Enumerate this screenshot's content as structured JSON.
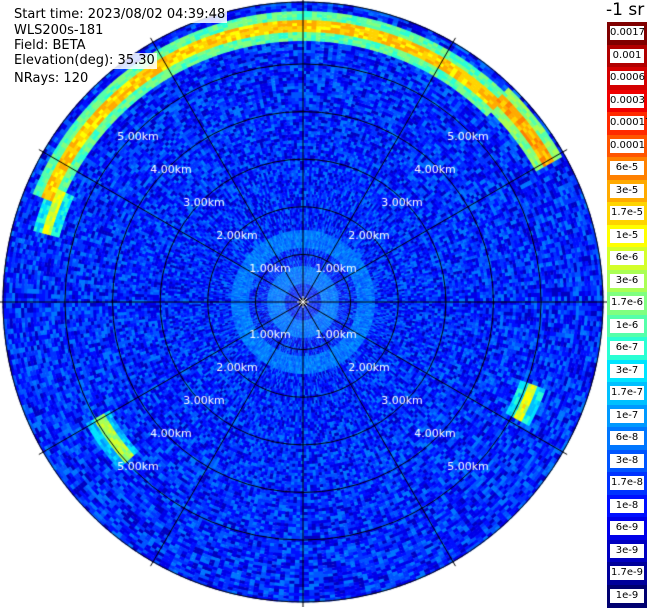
{
  "header": {
    "start_time": "Start time: 2023/08/02 04:39:48",
    "instrument": "WLS200s-181",
    "field": "Field: BETA",
    "elevation": "Elevation(deg): 35.30",
    "nrays": "NRays: 120"
  },
  "colorbar": {
    "units": "-1 sr",
    "labels": [
      "0.0017",
      "0.001",
      "0.0006",
      "0.0003",
      "0.00017",
      "0.0001",
      "6e-5",
      "3e-5",
      "1.7e-5",
      "1e-5",
      "6e-6",
      "3e-6",
      "1.7e-6",
      "1e-6",
      "6e-7",
      "3e-7",
      "1.7e-7",
      "1e-7",
      "6e-8",
      "3e-8",
      "1.7e-8",
      "1e-8",
      "6e-9",
      "3e-9",
      "1.7e-9",
      "1e-9"
    ],
    "colors": [
      "#7f0000",
      "#b00000",
      "#d40000",
      "#f00000",
      "#ff2a00",
      "#ff5500",
      "#ff8000",
      "#ffaa00",
      "#ffd400",
      "#ffff00",
      "#d4ff2a",
      "#aaff55",
      "#80ff80",
      "#55ffaa",
      "#2affd4",
      "#00e4ff",
      "#00c0ff",
      "#0099ff",
      "#0077ff",
      "#0055ff",
      "#0033ff",
      "#0010ff",
      "#0000e8",
      "#0000c0",
      "#00009a",
      "#000070"
    ]
  },
  "chart_data": {
    "type": "heatmap",
    "projection": "polar (PPI)",
    "title": "",
    "field": "BETA",
    "elevation_deg": 35.3,
    "nrays": 120,
    "range_rings_km": [
      1.0,
      2.0,
      3.0,
      4.0,
      5.0
    ],
    "ring_labels": [
      "1.00km",
      "2.00km",
      "3.00km",
      "4.00km",
      "5.00km"
    ],
    "max_range_km": 6.3,
    "spoke_angles_deg": [
      0,
      30,
      60,
      90,
      120,
      150,
      180,
      210,
      240,
      270,
      300,
      330
    ],
    "colorscale": "log",
    "color_range": [
      1e-09,
      0.0017
    ],
    "background_beta": 1.7e-08,
    "features": [
      {
        "description": "arc",
        "azimuth_start_deg": 292,
        "azimuth_end_deg": 44,
        "range_km": 5.75,
        "beta": 1.7e-05
      },
      {
        "description": "arc",
        "azimuth_start_deg": 44,
        "azimuth_end_deg": 60,
        "range_km": 5.9,
        "beta": 3e-05
      },
      {
        "description": "arc",
        "azimuth_start_deg": 285,
        "azimuth_end_deg": 294,
        "range_km": 5.55,
        "beta": 6e-06
      },
      {
        "description": "arc",
        "azimuth_start_deg": 228,
        "azimuth_end_deg": 240,
        "range_km": 4.9,
        "beta": 3e-06
      },
      {
        "description": "arc",
        "azimuth_start_deg": 110,
        "azimuth_end_deg": 118,
        "range_km": 5.1,
        "beta": 6e-06
      },
      {
        "description": "ring",
        "range_km": 0.55,
        "beta": 6e-08
      },
      {
        "description": "ring",
        "range_km": 1.3,
        "beta": 6e-08
      }
    ]
  }
}
